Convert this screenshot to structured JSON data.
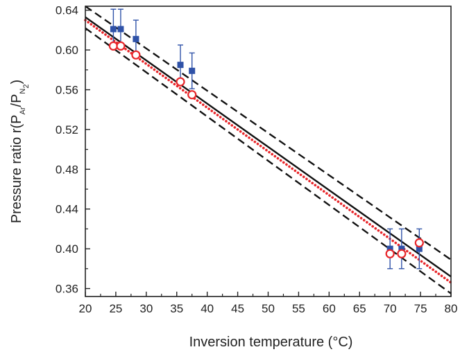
{
  "chart_data": {
    "type": "scatter",
    "xlabel": "Inversion temperature (°C)",
    "ylabel": {
      "prefix": "Pressure ratio  r(P",
      "sub1": "Ar",
      "mid": "/P",
      "sub2": "N",
      "sub3": "2",
      "suffix": ")"
    },
    "xlim": [
      20,
      80
    ],
    "ylim": [
      0.352,
      0.644
    ],
    "x_ticks": [
      20,
      25,
      30,
      35,
      40,
      45,
      50,
      55,
      60,
      65,
      70,
      75,
      80
    ],
    "y_ticks": [
      0.36,
      0.4,
      0.44,
      0.48,
      0.52,
      0.56,
      0.6,
      0.64
    ],
    "x_tick_labels": [
      "20",
      "25",
      "30",
      "35",
      "40",
      "45",
      "50",
      "55",
      "60",
      "65",
      "70",
      "75",
      "80"
    ],
    "y_tick_labels": [
      "0.36",
      "0.40",
      "0.44",
      "0.48",
      "0.52",
      "0.56",
      "0.60",
      "0.64"
    ],
    "grid": false,
    "colors": {
      "measured": "#2f52a8",
      "circles": "#e8262a",
      "fit": "#111111",
      "red_line": "#e8262a"
    },
    "series": [
      {
        "marker": "filled-square",
        "points": [
          {
            "x": 24.6,
            "y": 0.621,
            "err": 0.02
          },
          {
            "x": 25.8,
            "y": 0.621,
            "err": 0.02
          },
          {
            "x": 28.3,
            "y": 0.611,
            "err": 0.019
          },
          {
            "x": 35.6,
            "y": 0.585,
            "err": 0.02
          },
          {
            "x": 37.5,
            "y": 0.579,
            "err": 0.018
          },
          {
            "x": 70.0,
            "y": 0.4,
            "err": 0.02
          },
          {
            "x": 71.9,
            "y": 0.4,
            "err": 0.02
          },
          {
            "x": 74.8,
            "y": 0.4,
            "err": 0.02
          }
        ]
      },
      {
        "marker": "open-circle",
        "points": [
          {
            "x": 24.6,
            "y": 0.604
          },
          {
            "x": 25.8,
            "y": 0.604
          },
          {
            "x": 28.3,
            "y": 0.595
          },
          {
            "x": 35.6,
            "y": 0.568
          },
          {
            "x": 37.5,
            "y": 0.555
          },
          {
            "x": 70.0,
            "y": 0.395
          },
          {
            "x": 71.9,
            "y": 0.395
          },
          {
            "x": 74.8,
            "y": 0.406
          }
        ]
      }
    ],
    "lines": [
      {
        "style": "solid",
        "x": [
          20,
          80
        ],
        "y": [
          0.633,
          0.372
        ]
      },
      {
        "style": "dashed",
        "x": [
          20,
          80
        ],
        "y": [
          0.644,
          0.389
        ]
      },
      {
        "style": "dashed",
        "x": [
          20,
          80
        ],
        "y": [
          0.622,
          0.355
        ]
      },
      {
        "style": "dotted",
        "x": [
          20,
          80
        ],
        "y": [
          0.63,
          0.366
        ]
      }
    ]
  }
}
